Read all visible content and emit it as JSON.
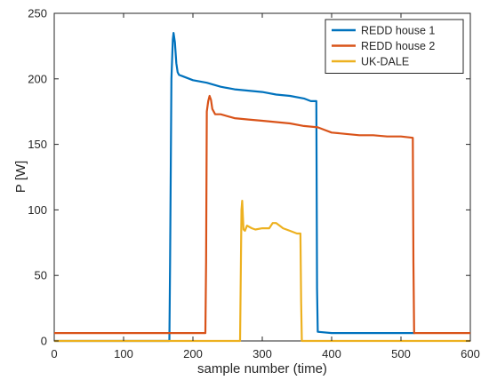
{
  "chart_data": {
    "type": "line",
    "title": "",
    "xlabel": "sample number (time)",
    "ylabel": "P [W]",
    "xlim": [
      0,
      600
    ],
    "ylim": [
      0,
      250
    ],
    "xticks": [
      0,
      100,
      200,
      300,
      400,
      500,
      600
    ],
    "yticks": [
      0,
      50,
      100,
      150,
      200,
      250
    ],
    "grid": false,
    "legend_position": "top-right",
    "series": [
      {
        "name": "REDD house 1",
        "color": "#0072BD",
        "x": [
          0,
          166,
          167,
          169,
          171,
          172,
          174,
          176,
          178,
          180,
          185,
          200,
          220,
          240,
          260,
          280,
          300,
          320,
          340,
          360,
          370,
          378,
          379,
          380,
          400,
          450,
          500,
          520
        ],
        "y": [
          0,
          0,
          60,
          200,
          230,
          235,
          228,
          212,
          205,
          203,
          202,
          199,
          197,
          194,
          192,
          191,
          190,
          188,
          187,
          185,
          183,
          183,
          40,
          7,
          6,
          6,
          6,
          6
        ]
      },
      {
        "name": "REDD house 2",
        "color": "#D95319",
        "x": [
          0,
          100,
          200,
          218,
          219,
          220,
          222,
          224,
          226,
          228,
          232,
          240,
          260,
          280,
          300,
          320,
          340,
          360,
          380,
          390,
          400,
          420,
          440,
          460,
          480,
          500,
          517,
          518,
          519,
          560,
          600
        ],
        "y": [
          6,
          6,
          6,
          6,
          60,
          175,
          183,
          187,
          184,
          177,
          173,
          173,
          170,
          169,
          168,
          167,
          166,
          164,
          163,
          161,
          159,
          158,
          157,
          157,
          156,
          156,
          155,
          60,
          6,
          6,
          6
        ]
      },
      {
        "name": "UK-DALE",
        "color": "#EDB120",
        "x": [
          0,
          100,
          200,
          268,
          269,
          270,
          271,
          272,
          273,
          275,
          278,
          285,
          290,
          300,
          310,
          315,
          320,
          325,
          330,
          340,
          350,
          355,
          356,
          357,
          400,
          500,
          600
        ],
        "y": [
          0,
          0,
          0,
          0,
          50,
          100,
          107,
          95,
          85,
          84,
          88,
          86,
          85,
          86,
          86,
          90,
          90,
          88,
          86,
          84,
          82,
          82,
          30,
          0,
          0,
          0,
          0
        ]
      }
    ]
  }
}
